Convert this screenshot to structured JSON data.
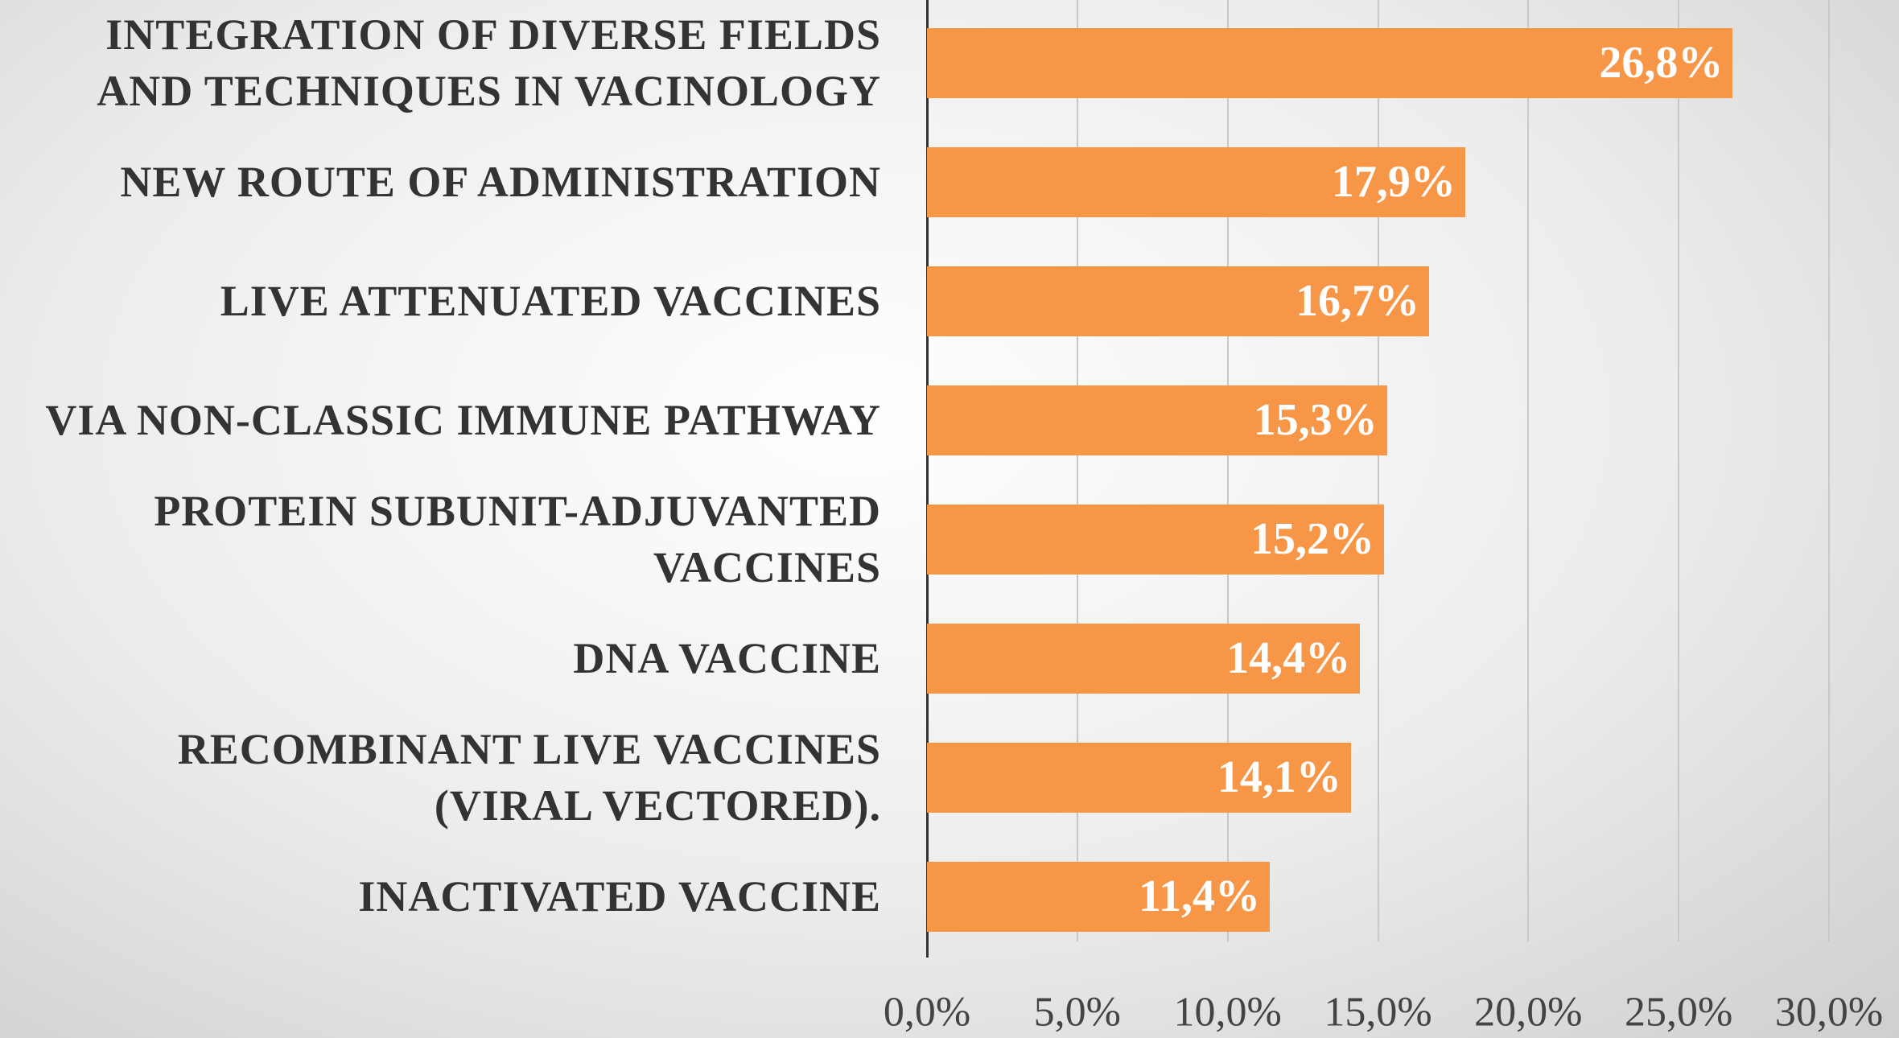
{
  "chart_data": {
    "type": "bar",
    "orientation": "horizontal",
    "categories": [
      "INTEGRATION OF DIVERSE FIELDS AND TECHNIQUES IN VACINOLOGY",
      "NEW ROUTE OF ADMINISTRATION",
      "LIVE ATTENUATED VACCINES",
      "VIA NON-CLASSIC IMMUNE PATHWAY",
      "PROTEIN SUBUNIT-ADJUVANTED VACCINES",
      "DNA VACCINE",
      "RECOMBINANT LIVE VACCINES (VIRAL VECTORED).",
      "INACTIVATED VACCINE"
    ],
    "values": [
      26.8,
      17.9,
      16.7,
      15.3,
      15.2,
      14.4,
      14.1,
      11.4
    ],
    "value_labels": [
      "26,8%",
      "17,9%",
      "16,7%",
      "15,3%",
      "15,2%",
      "14,4%",
      "14,1%",
      "11,4%"
    ],
    "color": "#f79646",
    "xlim": [
      0,
      30
    ],
    "xticks": [
      {
        "value": 0,
        "label": "0,0%"
      },
      {
        "value": 5,
        "label": "5,0%"
      },
      {
        "value": 10,
        "label": "10,0%"
      },
      {
        "value": 15,
        "label": "15,0%"
      },
      {
        "value": 20,
        "label": "20,0%"
      },
      {
        "value": 25,
        "label": "25,0%"
      },
      {
        "value": 30,
        "label": "30,0%"
      }
    ],
    "grid": true
  }
}
